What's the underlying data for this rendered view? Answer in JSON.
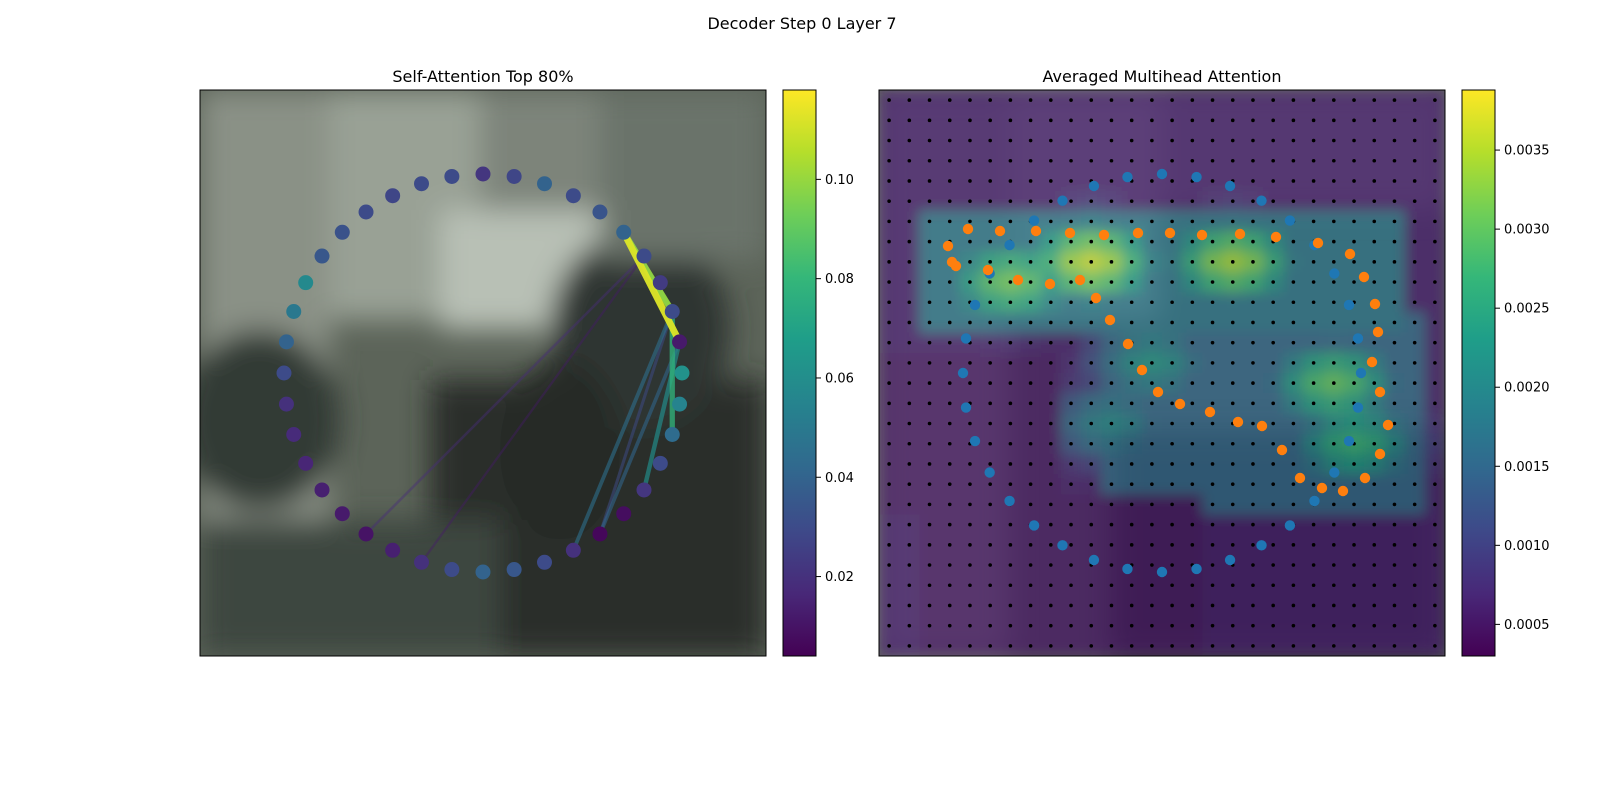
{
  "figure": {
    "suptitle": "Decoder Step 0 Layer 7"
  },
  "colors": {
    "viridis": [
      "#440154",
      "#482878",
      "#3e4989",
      "#31688e",
      "#26828e",
      "#1f9e89",
      "#35b779",
      "#6ece58",
      "#b5de2b",
      "#fde725"
    ],
    "blue_points": "#1f77b4",
    "orange_points": "#ff7f0e",
    "grid_dots": "#000000"
  },
  "chart_data": [
    {
      "type": "scatter",
      "title": "Self-Attention Top 80%",
      "background": "blurred photograph",
      "colorbar": {
        "min": 0.004,
        "max": 0.118,
        "ticks": [
          "0.02",
          "0.04",
          "0.06",
          "0.08",
          "0.10"
        ],
        "tick_values": [
          0.02,
          0.04,
          0.06,
          0.08,
          0.1
        ]
      },
      "node_count": 40,
      "node_values": [
        0.062,
        0.055,
        0.044,
        0.03,
        0.022,
        0.008,
        0.006,
        0.02,
        0.03,
        0.035,
        0.04,
        0.03,
        0.02,
        0.014,
        0.01,
        0.012,
        0.014,
        0.016,
        0.018,
        0.02,
        0.03,
        0.04,
        0.05,
        0.058,
        0.035,
        0.033,
        0.03,
        0.028,
        0.03,
        0.03,
        0.022,
        0.028,
        0.04,
        0.03,
        0.034,
        0.04,
        0.03,
        0.024,
        0.03,
        0.012
      ],
      "links": [
        {
          "from": 39,
          "to": 35,
          "value": 0.112
        },
        {
          "from": 38,
          "to": 35,
          "value": 0.1
        },
        {
          "from": 38,
          "to": 2,
          "value": 0.078
        },
        {
          "from": 38,
          "to": 35,
          "value": 0.072
        },
        {
          "from": 39,
          "to": 4,
          "value": 0.06
        },
        {
          "from": 38,
          "to": 7,
          "value": 0.046
        },
        {
          "from": 39,
          "to": 6,
          "value": 0.042
        },
        {
          "from": 38,
          "to": 6,
          "value": 0.03
        },
        {
          "from": 38,
          "to": 38,
          "value": 0.022
        },
        {
          "from": 36,
          "to": 14,
          "value": 0.018
        },
        {
          "from": 36,
          "to": 12,
          "value": 0.012
        }
      ]
    },
    {
      "type": "heatmap",
      "title": "Averaged Multihead Attention",
      "background": "blurred photograph",
      "colorbar": {
        "min": 0.0003,
        "max": 0.00388,
        "ticks": [
          "0.0005",
          "0.0010",
          "0.0015",
          "0.0020",
          "0.0025",
          "0.0030",
          "0.0035"
        ],
        "tick_values": [
          0.0005,
          0.001,
          0.0015,
          0.002,
          0.0025,
          0.003,
          0.0035
        ]
      },
      "grid": {
        "rows": 28,
        "cols": 28
      },
      "hotspots": [
        {
          "row": 8,
          "col": 10,
          "value": 0.0036
        },
        {
          "row": 8,
          "col": 17,
          "value": 0.0034
        },
        {
          "row": 9,
          "col": 6,
          "value": 0.0031
        },
        {
          "row": 14,
          "col": 22,
          "value": 0.003
        },
        {
          "row": 17,
          "col": 23,
          "value": 0.0027
        },
        {
          "row": 13,
          "col": 13,
          "value": 0.0022
        },
        {
          "row": 16,
          "col": 11,
          "value": 0.002
        }
      ],
      "blue_points_count": 36,
      "orange_points_count": 40
    }
  ]
}
